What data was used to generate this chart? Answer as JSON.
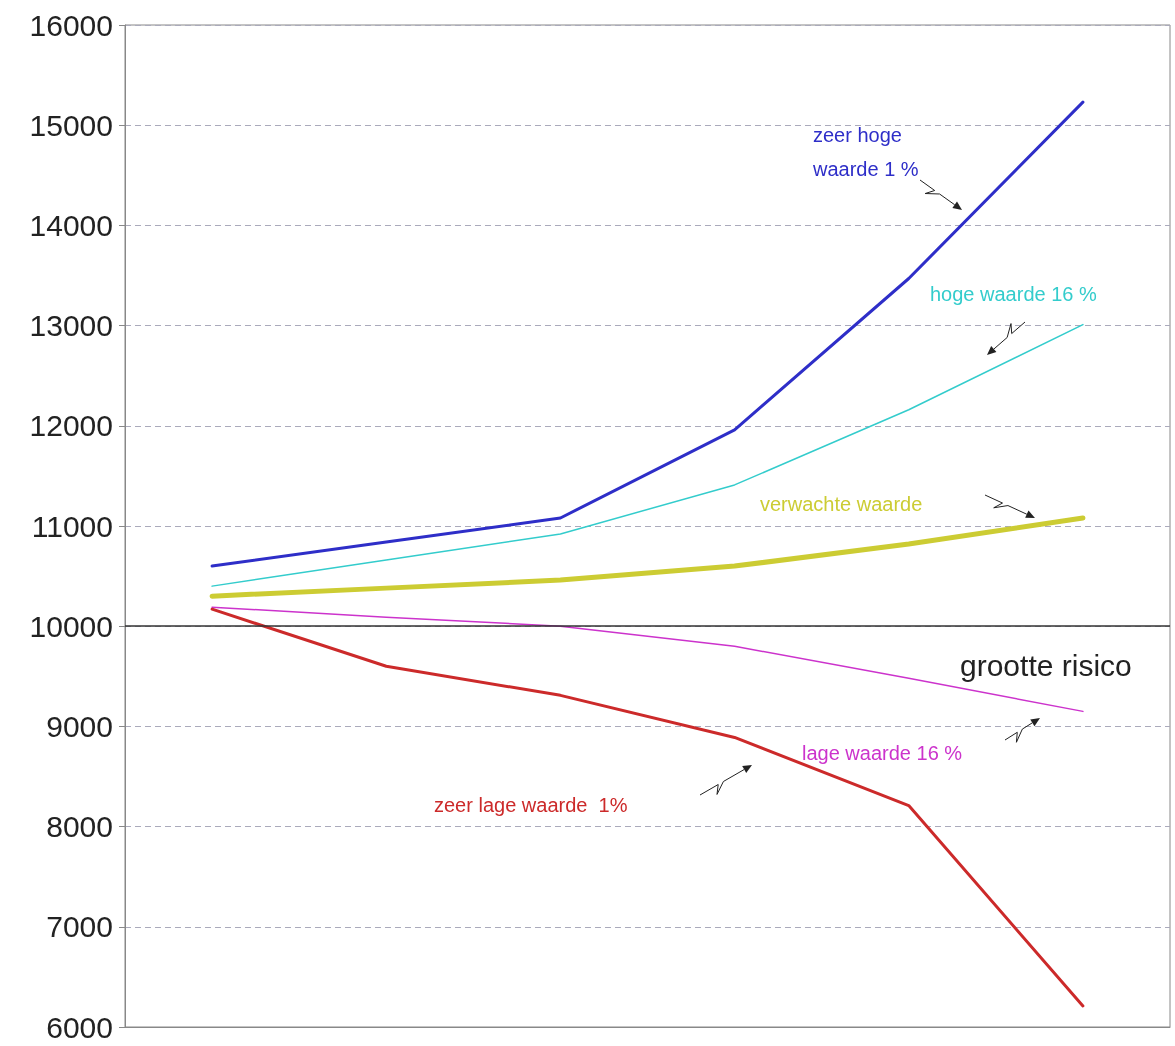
{
  "chart_data": {
    "type": "line",
    "categories": [
      null,
      null,
      null,
      null,
      null,
      null
    ],
    "series": [
      {
        "name": "zeer hoge waarde 1 %",
        "color": "#2e2ec8",
        "values": [
          10600,
          10840,
          11080,
          11960,
          13470,
          15230
        ]
      },
      {
        "name": "hoge waarde 16 %",
        "color": "#33cccc",
        "values": [
          10400,
          10660,
          10920,
          11410,
          12160,
          13010
        ]
      },
      {
        "name": "verwachte waarde",
        "color": "#cccc33",
        "values": [
          10300,
          10380,
          10460,
          10600,
          10820,
          11080
        ]
      },
      {
        "name": "lage waarde 16 %",
        "color": "#cc33cc",
        "values": [
          10190,
          10090,
          10000,
          9800,
          9480,
          9150
        ]
      },
      {
        "name": "zeer lage waarde  1%",
        "color": "#cc2a2a",
        "values": [
          10170,
          9600,
          9310,
          8890,
          8210,
          6210
        ]
      }
    ],
    "ylim": [
      6000,
      16000
    ],
    "yticks": [
      6000,
      7000,
      8000,
      9000,
      10000,
      11000,
      12000,
      13000,
      14000,
      15000,
      16000
    ],
    "ref_lines": [
      {
        "axis": "y",
        "value": 10000,
        "color": "#333333"
      }
    ],
    "annotations": [
      "grootte risico"
    ],
    "grid": "y",
    "legend": false,
    "marker": "none",
    "line_style": "solid",
    "tick_labels": "y"
  }
}
